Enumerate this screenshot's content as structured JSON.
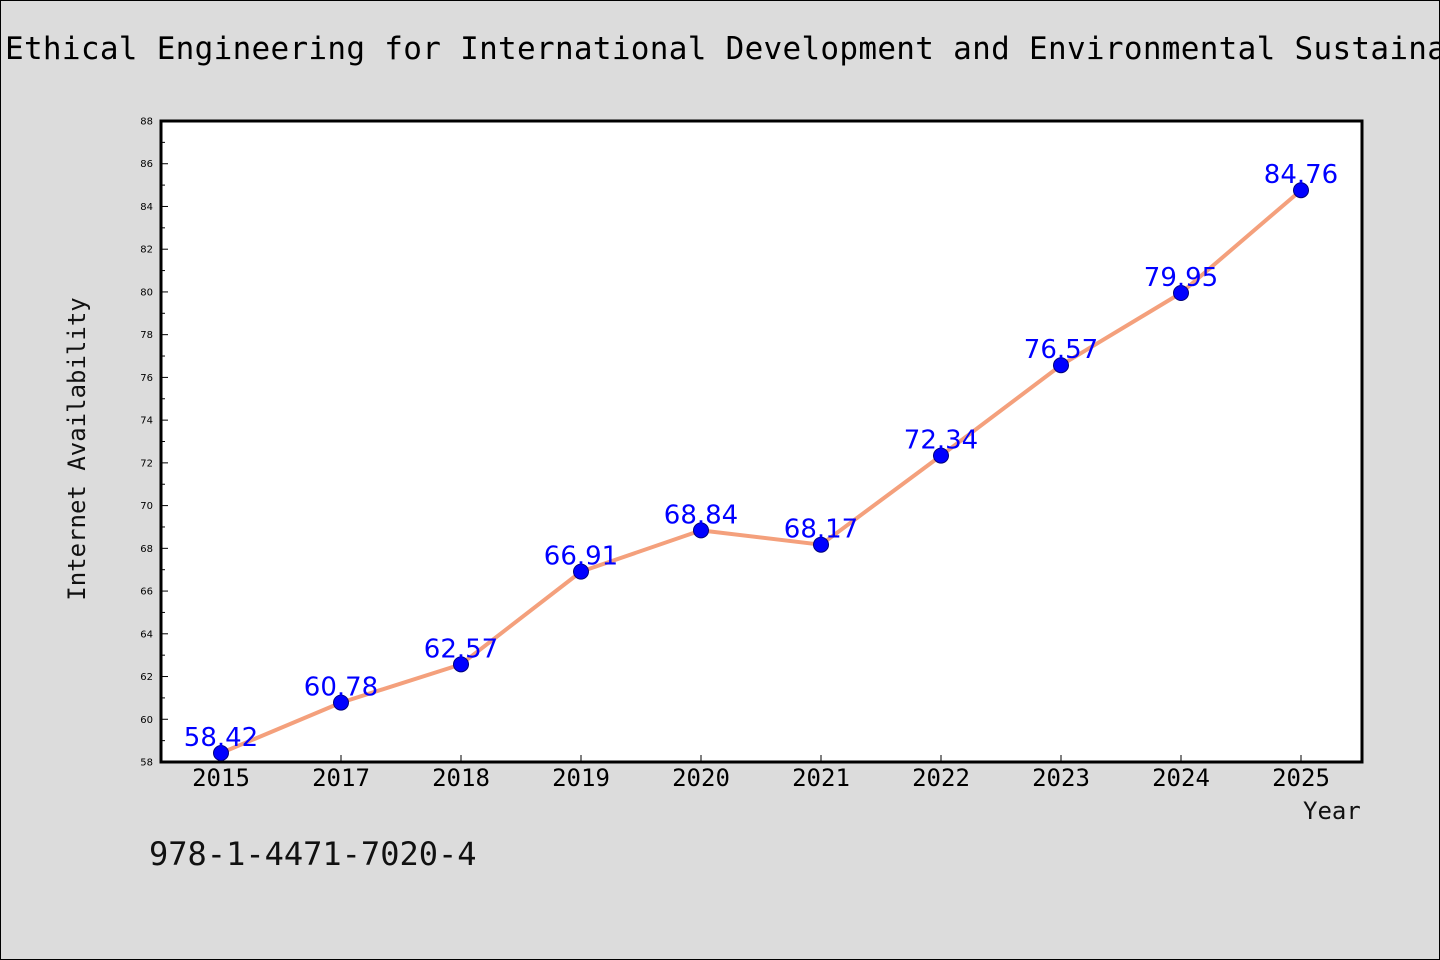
{
  "chart_data": {
    "type": "line",
    "title": "Ethical Engineering for International Development and Environmental Sustainability",
    "xlabel": "Year",
    "ylabel": "Internet Availability",
    "categories": [
      "2015",
      "2017",
      "2018",
      "2019",
      "2020",
      "2021",
      "2022",
      "2023",
      "2024",
      "2025"
    ],
    "series": [
      {
        "values": [
          58.42,
          60.78,
          62.57,
          66.91,
          68.84,
          68.17,
          72.34,
          76.57,
          79.95,
          84.76
        ],
        "data_labels": [
          "58.42",
          "60.78",
          "62.57",
          "66.91",
          "68.84",
          "68.17",
          "72.34",
          "76.57",
          "79.95",
          "84.76"
        ]
      }
    ],
    "ylim": [
      58,
      88
    ],
    "yticks": [
      58,
      60,
      62,
      64,
      66,
      68,
      70,
      72,
      74,
      76,
      78,
      80,
      82,
      84,
      86,
      88
    ],
    "grid": false,
    "colors": {
      "line": "#f4a07c",
      "marker": "#0000ff",
      "data_label": "#0000ff",
      "plot_bg": "#ffffff",
      "figure_bg": "#dcdcdc"
    }
  },
  "footer": {
    "isbn": "978-1-4471-7020-4"
  }
}
